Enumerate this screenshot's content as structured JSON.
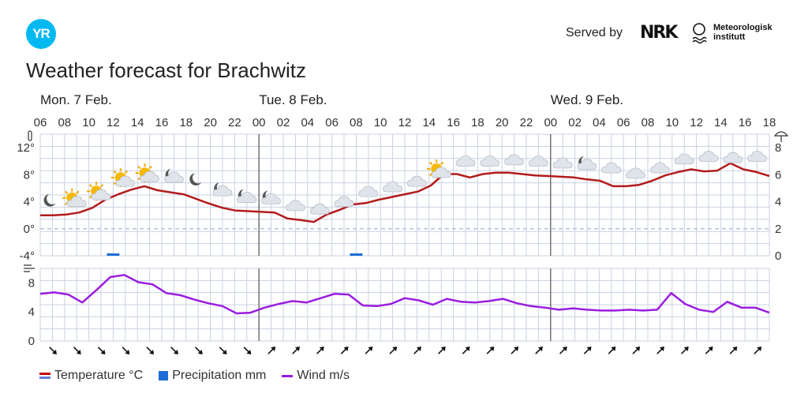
{
  "header": {
    "logo_text": "YR",
    "served_by": "Served by",
    "nrk_logo": "NRK",
    "met_line1": "Meteorologisk",
    "met_line2": "institutt",
    "title": "Weather forecast for Brachwitz"
  },
  "legend": {
    "temperature": "Temperature °C",
    "precipitation": "Precipitation mm",
    "wind": "Wind m/s"
  },
  "chart_data": {
    "type": "line",
    "days": [
      {
        "label": "Mon. 7 Feb.",
        "start_index": 0
      },
      {
        "label": "Tue. 8 Feb.",
        "start_index": 9
      },
      {
        "label": "Wed. 9 Feb.",
        "start_index": 21
      }
    ],
    "x": [
      "06",
      "08",
      "10",
      "12",
      "14",
      "16",
      "18",
      "20",
      "22",
      "00",
      "02",
      "04",
      "06",
      "08",
      "10",
      "12",
      "14",
      "16",
      "18",
      "20",
      "22",
      "00",
      "02",
      "04",
      "06",
      "08",
      "10",
      "12",
      "14",
      "16",
      "18"
    ],
    "temperature": {
      "name": "Temperature °C",
      "yticks": [
        "12°",
        "8°",
        "4°",
        "0°",
        "-4°"
      ],
      "ylim": [
        -4,
        14
      ],
      "points": [
        2,
        2,
        2.1,
        2.4,
        3.1,
        4.3,
        5.1,
        5.8,
        6.3,
        5.7,
        5.4,
        5.1,
        4.4,
        3.7,
        3.1,
        2.7,
        2.6,
        2.5,
        2.4,
        1.5,
        1.3,
        1.0,
        2.1,
        2.8,
        3.6,
        3.8,
        4.3,
        4.7,
        5.1,
        5.5,
        6.4,
        8.1,
        8.1,
        7.6,
        8.1,
        8.3,
        8.3,
        8.1,
        7.9,
        7.8,
        7.7,
        7.6,
        7.3,
        7.1,
        6.3,
        6.3,
        6.5,
        7.1,
        7.9,
        8.4,
        8.8,
        8.5,
        8.6,
        9.7,
        8.8,
        8.4,
        7.8
      ]
    },
    "precipitation": {
      "name": "Precipitation mm",
      "yticks": [
        "8",
        "6",
        "4",
        "2",
        "0"
      ],
      "ylim": [
        0,
        9
      ],
      "bars": [
        {
          "x_index": 3,
          "value": 0.1
        },
        {
          "x_index": 13,
          "value": 0.1
        }
      ]
    },
    "wind": {
      "name": "Wind m/s",
      "yticks": [
        "8",
        "4",
        "0"
      ],
      "ylim": [
        0,
        10
      ],
      "points": [
        6.5,
        6.7,
        6.4,
        5.3,
        7.0,
        8.8,
        9.1,
        8.1,
        7.8,
        6.6,
        6.3,
        5.7,
        5.2,
        4.8,
        3.8,
        3.9,
        4.6,
        5.1,
        5.5,
        5.3,
        5.9,
        6.5,
        6.4,
        4.9,
        4.8,
        5.1,
        5.9,
        5.6,
        5.0,
        5.8,
        5.4,
        5.3,
        5.5,
        5.8,
        5.2,
        4.8,
        4.6,
        4.3,
        4.5,
        4.3,
        4.2,
        4.2,
        4.3,
        4.2,
        4.3,
        6.6,
        5.1,
        4.3,
        4.0,
        5.4,
        4.6,
        4.6,
        3.9
      ]
    },
    "weather_icons": [
      "moon",
      "sun-cloud",
      "sun-cloud",
      "sun-cloud",
      "sun-cloud",
      "moon-cloud",
      "moon",
      "moon-cloud",
      "moon-cloud",
      "moon-cloud",
      "cloud",
      "cloud",
      "cloud",
      "cloud",
      "cloud",
      "cloud",
      "sun-cloud",
      "cloud",
      "cloud",
      "cloud",
      "cloud",
      "cloud",
      "moon-cloud",
      "cloud",
      "cloud",
      "cloud",
      "cloud",
      "cloud",
      "cloud",
      "cloud",
      "moon-cloud"
    ],
    "wind_directions_deg": [
      135,
      135,
      135,
      135,
      135,
      135,
      135,
      135,
      135,
      45,
      45,
      45,
      45,
      45,
      45,
      45,
      45,
      45,
      45,
      45,
      45,
      45,
      45,
      45,
      45,
      45,
      45,
      45,
      45,
      45,
      45
    ],
    "grid": true,
    "colors": {
      "temperature": "#b31b1b",
      "precipitation": "#1f6dd6",
      "wind": "#9a1de0",
      "grid": "#c9d1e2"
    }
  }
}
